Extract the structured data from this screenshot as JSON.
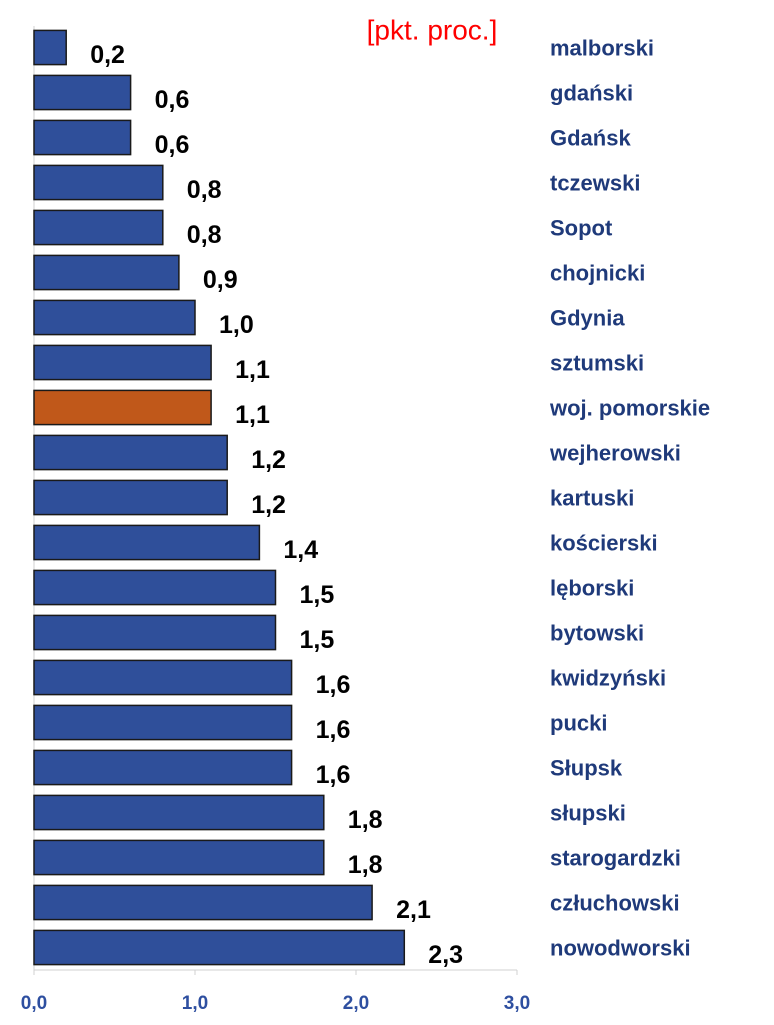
{
  "chart_data": {
    "type": "bar",
    "orientation": "horizontal",
    "unit_label": "[pkt. proc.]",
    "categories": [
      "malborski",
      "gdański",
      "Gdańsk",
      "tczewski",
      "Sopot",
      "chojnicki",
      "Gdynia",
      "sztumski",
      "woj. pomorskie",
      "wejherowski",
      "kartuski",
      "kościerski",
      "lęborski",
      "bytowski",
      "kwidzyński",
      "pucki",
      "Słupsk",
      "słupski",
      "starogardzki",
      "człuchowski",
      "nowodworski"
    ],
    "values": [
      0.2,
      0.6,
      0.6,
      0.8,
      0.8,
      0.9,
      1.0,
      1.1,
      1.1,
      1.2,
      1.2,
      1.4,
      1.5,
      1.5,
      1.6,
      1.6,
      1.6,
      1.8,
      1.8,
      2.1,
      2.3
    ],
    "value_labels": [
      "0,2",
      "0,6",
      "0,6",
      "0,8",
      "0,8",
      "0,9",
      "1,0",
      "1,1",
      "1,1",
      "1,2",
      "1,2",
      "1,4",
      "1,5",
      "1,5",
      "1,6",
      "1,6",
      "1,6",
      "1,8",
      "1,8",
      "2,1",
      "2,3"
    ],
    "colors": [
      "#2f4f9a",
      "#2f4f9a",
      "#2f4f9a",
      "#2f4f9a",
      "#2f4f9a",
      "#2f4f9a",
      "#2f4f9a",
      "#2f4f9a",
      "#c0581a",
      "#2f4f9a",
      "#2f4f9a",
      "#2f4f9a",
      "#2f4f9a",
      "#2f4f9a",
      "#2f4f9a",
      "#2f4f9a",
      "#2f4f9a",
      "#2f4f9a",
      "#2f4f9a",
      "#2f4f9a",
      "#2f4f9a"
    ],
    "xlim": [
      0,
      3
    ],
    "xticks": [
      {
        "value": 0,
        "label": "0,0"
      },
      {
        "value": 1,
        "label": "1,0"
      },
      {
        "value": 2,
        "label": "2,0"
      },
      {
        "value": 3,
        "label": "3,0"
      }
    ]
  }
}
